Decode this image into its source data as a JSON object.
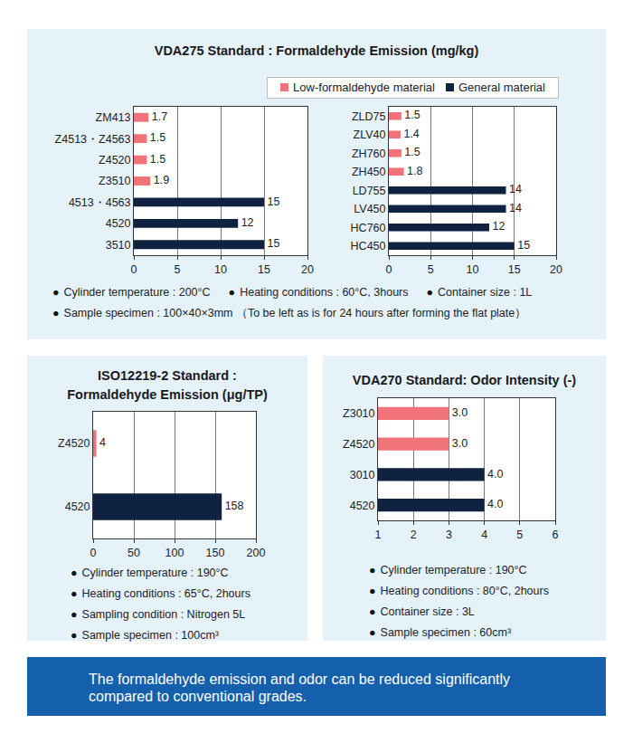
{
  "chart_data": [
    {
      "type": "bar",
      "title": [
        "VDA275 Standard : Formaldehyde Emission (mg/kg)"
      ],
      "orientation": "horizontal",
      "categories": [
        "ZM413",
        "Z4513・Z4563",
        "Z4520",
        "Z3510",
        "4513・4563",
        "4520",
        "3510"
      ],
      "series": [
        {
          "name": "Low-formaldehyde material",
          "color": "#f0737a",
          "values": [
            1.7,
            1.5,
            1.5,
            1.9,
            null,
            null,
            null
          ]
        },
        {
          "name": "General material",
          "color": "#0f2340",
          "values": [
            null,
            null,
            null,
            null,
            15,
            12,
            15
          ]
        }
      ],
      "xlim": [
        0,
        20
      ],
      "xticks": [
        0,
        5,
        10,
        15,
        20
      ],
      "grid": true,
      "legend": "top-right",
      "data_labels": true,
      "notes": [
        "Cylinder temperature : 200°C",
        "Heating conditions : 60°C, 3hours",
        "Container size : 1L",
        "Sample specimen : 100×40×3mm （To be left as is for 24 hours after forming the flat plate）"
      ]
    },
    {
      "type": "bar",
      "orientation": "horizontal",
      "categories": [
        "ZLD75",
        "ZLV40",
        "ZH760",
        "ZH450",
        "LD755",
        "LV450",
        "HC760",
        "HC450"
      ],
      "values": [
        1.5,
        1.4,
        1.5,
        1.8,
        14,
        14,
        12,
        15
      ],
      "colors": [
        "#f0737a",
        "#f0737a",
        "#f0737a",
        "#f0737a",
        "#0f2340",
        "#0f2340",
        "#0f2340",
        "#0f2340"
      ],
      "xlim": [
        0,
        20
      ],
      "xticks": [
        0,
        5,
        10,
        15,
        20
      ],
      "grid": true,
      "data_labels": true
    },
    {
      "type": "bar",
      "title": [
        "ISO12219-2 Standard :",
        "Formaldehyde Emission (μg/TP)"
      ],
      "orientation": "horizontal",
      "categories": [
        "Z4520",
        "4520"
      ],
      "values": [
        4,
        158
      ],
      "colors": [
        "#f0737a",
        "#0f2340"
      ],
      "xlim": [
        0,
        200
      ],
      "xticks": [
        0,
        50,
        100,
        150,
        200
      ],
      "grid": true,
      "data_labels": true,
      "notes": [
        "Cylinder temperature : 190°C",
        "Heating conditions : 65°C, 2hours",
        "Sampling condition : Nitrogen 5L",
        "Sample specimen : 100cm³"
      ]
    },
    {
      "type": "bar",
      "title": [
        "VDA270 Standard: Odor Intensity (-)"
      ],
      "orientation": "horizontal",
      "categories": [
        "Z3010",
        "Z4520",
        "3010",
        "4520"
      ],
      "values": [
        3,
        3,
        4,
        4
      ],
      "value_labels": [
        "3.0",
        "3.0",
        "4.0",
        "4.0"
      ],
      "colors": [
        "#f0737a",
        "#f0737a",
        "#0f2340",
        "#0f2340"
      ],
      "xlim": [
        1,
        6
      ],
      "xticks": [
        1,
        2,
        3,
        4,
        5,
        6
      ],
      "grid": true,
      "data_labels": true,
      "notes": [
        "Cylinder temperature : 190°C",
        "Heating conditions : 80°C, 2hours",
        "Container size : 3L",
        "Sample specimen : 60cm³"
      ]
    }
  ],
  "footer": "The formaldehyde emission and odor can be reduced significantly compared to conventional grades."
}
